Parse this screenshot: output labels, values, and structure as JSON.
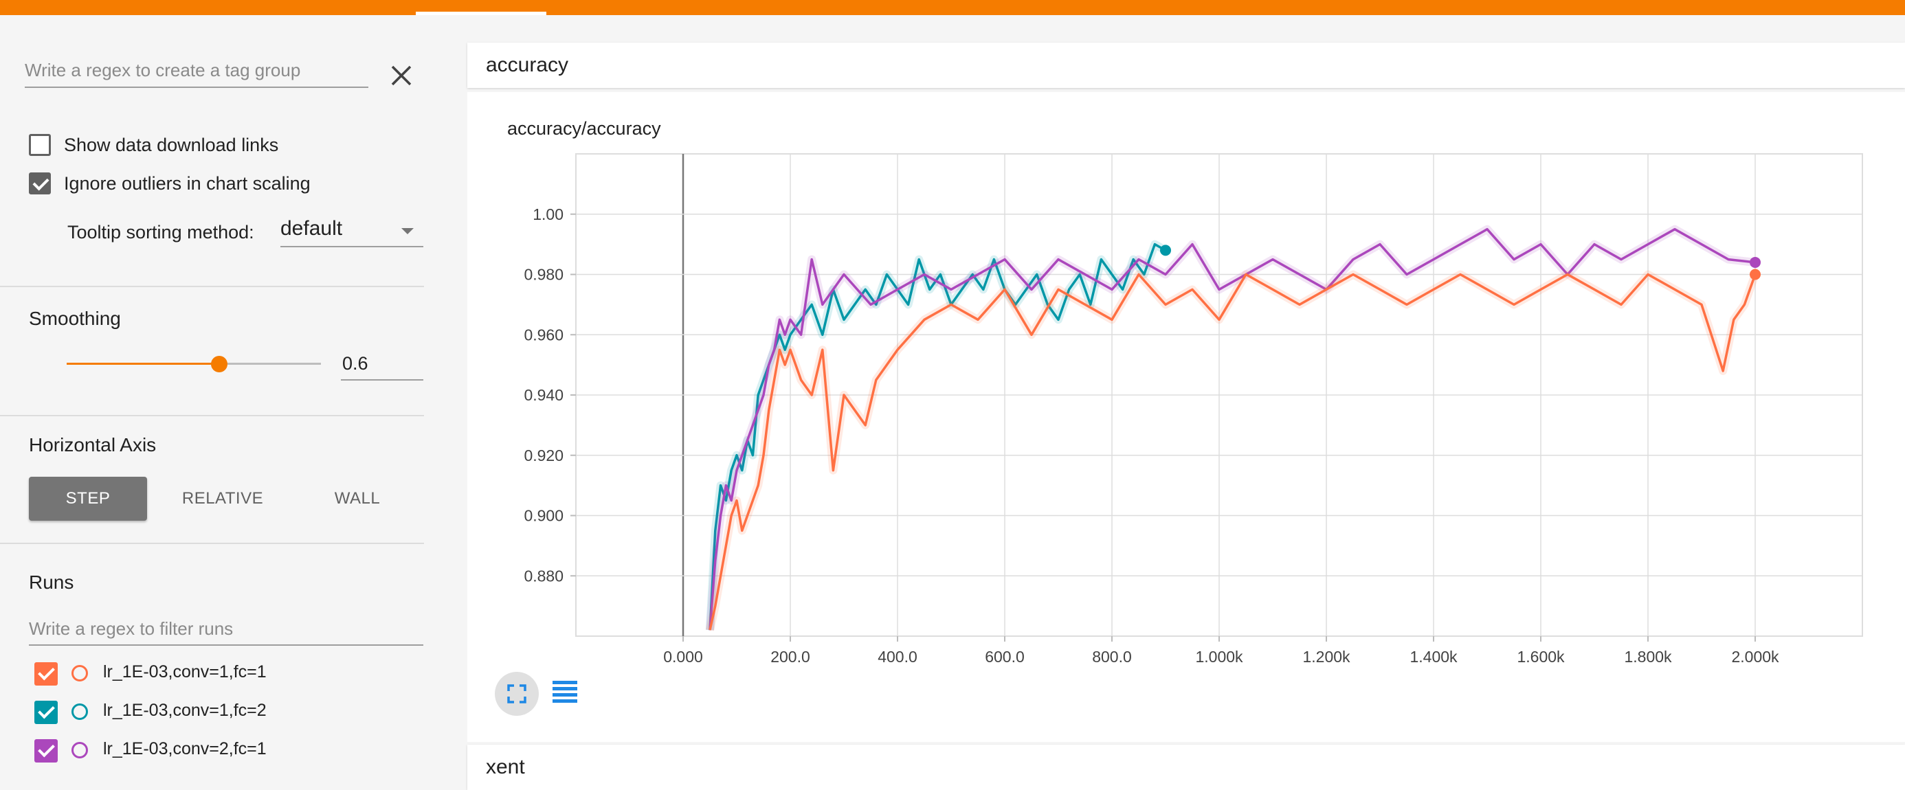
{
  "sidebar": {
    "tag_regex_placeholder": "Write a regex to create a tag group",
    "show_download_links_label": "Show data download links",
    "show_download_links_checked": false,
    "ignore_outliers_label": "Ignore outliers in chart scaling",
    "ignore_outliers_checked": true,
    "tooltip_sorting_label": "Tooltip sorting method:",
    "tooltip_sorting_value": "default",
    "smoothing_title": "Smoothing",
    "smoothing_value": "0.6",
    "smoothing_fraction": 0.6,
    "horizontal_axis_title": "Horizontal Axis",
    "axis_buttons": [
      "STEP",
      "RELATIVE",
      "WALL"
    ],
    "axis_selected": "STEP",
    "runs_title": "Runs",
    "runs_filter_placeholder": "Write a regex to filter runs",
    "runs": [
      {
        "name": "lr_1E-03,conv=1,fc=1",
        "color": "#ff7043",
        "checked": true
      },
      {
        "name": "lr_1E-03,conv=1,fc=2",
        "color": "#0097a7",
        "checked": true
      },
      {
        "name": "lr_1E-03,conv=2,fc=1",
        "color": "#ab47bc",
        "checked": true
      }
    ]
  },
  "cards": [
    {
      "title": "accuracy",
      "chart_title": "accuracy/accuracy"
    },
    {
      "title": "xent"
    }
  ],
  "icons": {
    "close": "close-icon",
    "dropdown": "chevron-down-icon",
    "fit_domain": "fit-to-domain-icon",
    "log_scale": "list-icon"
  },
  "chart_data": {
    "type": "line",
    "title": "accuracy/accuracy",
    "xlim": [
      -200,
      2200
    ],
    "ylim": [
      0.86,
      1.02
    ],
    "x_ticks": [
      "0.000",
      "200.0",
      "400.0",
      "600.0",
      "800.0",
      "1.000k",
      "1.200k",
      "1.400k",
      "1.600k",
      "1.800k",
      "2.000k"
    ],
    "x_tick_values": [
      0,
      200,
      400,
      600,
      800,
      1000,
      1200,
      1400,
      1600,
      1800,
      2000
    ],
    "y_ticks": [
      "0.880",
      "0.900",
      "0.920",
      "0.940",
      "0.960",
      "0.980",
      "1.00"
    ],
    "y_tick_values": [
      0.88,
      0.9,
      0.92,
      0.94,
      0.96,
      0.98,
      1.0
    ],
    "series": [
      {
        "color": "#0097a7",
        "x": [
          50,
          60,
          70,
          80,
          90,
          100,
          110,
          120,
          130,
          140,
          150,
          160,
          170,
          180,
          190,
          200,
          220,
          240,
          260,
          280,
          300,
          320,
          340,
          360,
          380,
          400,
          420,
          440,
          460,
          480,
          500,
          520,
          540,
          560,
          580,
          600,
          620,
          640,
          660,
          680,
          700,
          720,
          740,
          760,
          780,
          800,
          820,
          840,
          860,
          880,
          900
        ],
        "y": [
          0.862,
          0.895,
          0.91,
          0.905,
          0.915,
          0.92,
          0.915,
          0.925,
          0.92,
          0.94,
          0.945,
          0.95,
          0.955,
          0.96,
          0.955,
          0.96,
          0.965,
          0.97,
          0.96,
          0.975,
          0.965,
          0.97,
          0.975,
          0.97,
          0.98,
          0.975,
          0.97,
          0.985,
          0.975,
          0.98,
          0.97,
          0.975,
          0.98,
          0.975,
          0.985,
          0.975,
          0.97,
          0.975,
          0.98,
          0.97,
          0.965,
          0.975,
          0.98,
          0.97,
          0.985,
          0.98,
          0.975,
          0.985,
          0.98,
          0.99,
          0.988
        ]
      },
      {
        "color": "#ab47bc",
        "x": [
          50,
          60,
          70,
          80,
          90,
          100,
          110,
          120,
          130,
          140,
          150,
          160,
          170,
          180,
          190,
          200,
          220,
          240,
          260,
          280,
          300,
          350,
          400,
          450,
          500,
          550,
          600,
          650,
          700,
          750,
          800,
          850,
          900,
          950,
          1000,
          1050,
          1100,
          1150,
          1200,
          1250,
          1300,
          1350,
          1400,
          1450,
          1500,
          1550,
          1600,
          1650,
          1700,
          1750,
          1800,
          1850,
          1900,
          1950,
          2000
        ],
        "y": [
          0.862,
          0.885,
          0.9,
          0.91,
          0.905,
          0.915,
          0.92,
          0.925,
          0.93,
          0.935,
          0.94,
          0.95,
          0.955,
          0.965,
          0.96,
          0.965,
          0.96,
          0.985,
          0.97,
          0.975,
          0.98,
          0.97,
          0.975,
          0.98,
          0.975,
          0.98,
          0.985,
          0.975,
          0.985,
          0.98,
          0.975,
          0.985,
          0.98,
          0.99,
          0.975,
          0.98,
          0.985,
          0.98,
          0.975,
          0.985,
          0.99,
          0.98,
          0.985,
          0.99,
          0.995,
          0.985,
          0.99,
          0.98,
          0.99,
          0.985,
          0.99,
          0.995,
          0.99,
          0.985,
          0.984
        ]
      },
      {
        "color": "#ff7043",
        "x": [
          50,
          60,
          70,
          80,
          90,
          100,
          110,
          120,
          130,
          140,
          150,
          160,
          170,
          180,
          190,
          200,
          220,
          240,
          260,
          280,
          300,
          320,
          340,
          360,
          380,
          400,
          450,
          500,
          550,
          600,
          650,
          700,
          750,
          800,
          850,
          900,
          950,
          1000,
          1050,
          1100,
          1150,
          1200,
          1250,
          1300,
          1350,
          1400,
          1450,
          1500,
          1550,
          1600,
          1650,
          1700,
          1750,
          1800,
          1850,
          1900,
          1940,
          1960,
          1980,
          2000
        ],
        "y": [
          0.862,
          0.87,
          0.88,
          0.89,
          0.9,
          0.905,
          0.895,
          0.9,
          0.905,
          0.91,
          0.92,
          0.935,
          0.945,
          0.955,
          0.95,
          0.955,
          0.945,
          0.94,
          0.955,
          0.915,
          0.94,
          0.935,
          0.93,
          0.945,
          0.95,
          0.955,
          0.965,
          0.97,
          0.965,
          0.975,
          0.96,
          0.975,
          0.97,
          0.965,
          0.98,
          0.97,
          0.975,
          0.965,
          0.98,
          0.975,
          0.97,
          0.975,
          0.98,
          0.975,
          0.97,
          0.975,
          0.98,
          0.975,
          0.97,
          0.975,
          0.98,
          0.975,
          0.97,
          0.98,
          0.975,
          0.97,
          0.948,
          0.965,
          0.97,
          0.98
        ]
      }
    ]
  }
}
